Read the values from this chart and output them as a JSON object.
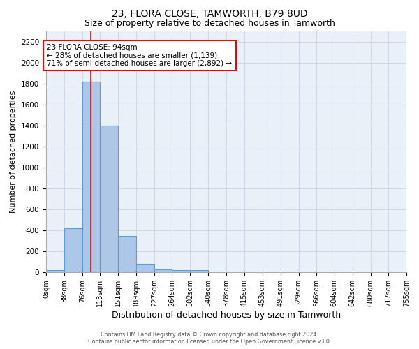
{
  "title": "23, FLORA CLOSE, TAMWORTH, B79 8UD",
  "subtitle": "Size of property relative to detached houses in Tamworth",
  "xlabel": "Distribution of detached houses by size in Tamworth",
  "ylabel": "Number of detached properties",
  "bin_edges": [
    0,
    38,
    76,
    113,
    151,
    189,
    227,
    264,
    302,
    340,
    378,
    415,
    453,
    491,
    529,
    566,
    604,
    642,
    680,
    717,
    755
  ],
  "bar_heights": [
    20,
    420,
    1820,
    1400,
    350,
    80,
    25,
    20,
    20,
    0,
    0,
    0,
    0,
    0,
    0,
    0,
    0,
    0,
    0,
    0
  ],
  "bar_color": "#aec6e8",
  "bar_edge_color": "#5a9fd4",
  "property_size": 94,
  "annotation_line1": "23 FLORA CLOSE: 94sqm",
  "annotation_line2": "← 28% of detached houses are smaller (1,139)",
  "annotation_line3": "71% of semi-detached houses are larger (2,892) →",
  "annotation_box_color": "white",
  "annotation_box_edge_color": "red",
  "vline_color": "red",
  "ylim": [
    0,
    2300
  ],
  "yticks": [
    0,
    200,
    400,
    600,
    800,
    1000,
    1200,
    1400,
    1600,
    1800,
    2000,
    2200
  ],
  "grid_color": "#d0d8e8",
  "axes_bg_color": "#eaf0f8",
  "figure_bg_color": "#ffffff",
  "footer_text": "Contains HM Land Registry data © Crown copyright and database right 2024.\nContains public sector information licensed under the Open Government Licence v3.0.",
  "title_fontsize": 10,
  "subtitle_fontsize": 9,
  "ylabel_fontsize": 8,
  "xlabel_fontsize": 9,
  "tick_fontsize": 7,
  "annotation_fontsize": 7.5,
  "tick_labels": [
    "0sqm",
    "38sqm",
    "76sqm",
    "113sqm",
    "151sqm",
    "189sqm",
    "227sqm",
    "264sqm",
    "302sqm",
    "340sqm",
    "378sqm",
    "415sqm",
    "453sqm",
    "491sqm",
    "529sqm",
    "566sqm",
    "604sqm",
    "642sqm",
    "680sqm",
    "717sqm",
    "755sqm"
  ]
}
